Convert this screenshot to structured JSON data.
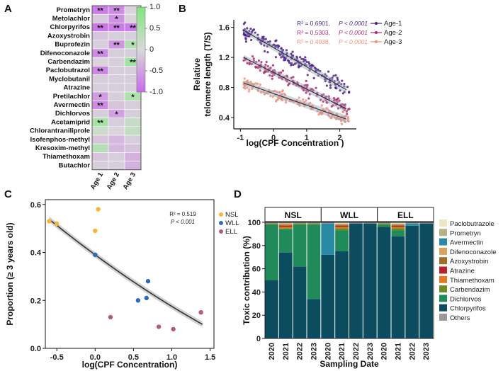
{
  "chart_data": [
    {
      "panel": "A",
      "type": "heatmap",
      "rows": [
        "Prometryn",
        "Metolachlor",
        "Chlorpyrifos",
        "Azoxystrobin",
        "Buprofezin",
        "Difenoconazole",
        "Carbendazim",
        "Paclobutrazol",
        "Myclobutanil",
        "Atrazine",
        "Pretilachlor",
        "Avermectin",
        "Dichlorvos",
        "Acetamiprid",
        "Chlorantraniliprole",
        "Isofenphos-methyl",
        "Kresoxim-methyl",
        "Thiamethoxam",
        "Butachlor"
      ],
      "columns": [
        "Age 1",
        "Age 2",
        "Age 3"
      ],
      "values": [
        [
          -0.85,
          -0.7,
          -0.05
        ],
        [
          -0.15,
          -0.65,
          -0.05
        ],
        [
          -0.9,
          -0.85,
          -0.85
        ],
        [
          -0.2,
          -0.1,
          -0.1
        ],
        [
          -0.1,
          -0.6,
          0.4
        ],
        [
          -0.7,
          -0.1,
          -0.1
        ],
        [
          -0.05,
          -0.1,
          0.6
        ],
        [
          -0.75,
          -0.1,
          -0.1
        ],
        [
          -0.1,
          -0.1,
          -0.1
        ],
        [
          -0.1,
          -0.1,
          -0.1
        ],
        [
          -0.55,
          -0.1,
          0.45
        ],
        [
          -0.7,
          -0.2,
          -0.1
        ],
        [
          -0.1,
          -0.5,
          -0.1
        ],
        [
          0.55,
          -0.1,
          0.2
        ],
        [
          0.15,
          -0.05,
          0.25
        ],
        [
          -0.2,
          -0.3,
          -0.1
        ],
        [
          0.4,
          -0.3,
          -0.2
        ],
        [
          -0.2,
          -0.1,
          -0.35
        ],
        [
          -0.1,
          -0.1,
          -0.35
        ]
      ],
      "stars": [
        [
          "**",
          "**",
          ""
        ],
        [
          "",
          "*",
          ""
        ],
        [
          "**",
          "**",
          "**"
        ],
        [
          "",
          "",
          ""
        ],
        [
          "",
          "**",
          "*"
        ],
        [
          "**",
          "",
          ""
        ],
        [
          "",
          "",
          "**"
        ],
        [
          "**",
          "",
          ""
        ],
        [
          "",
          "",
          ""
        ],
        [
          "",
          "",
          ""
        ],
        [
          "*",
          "",
          "*"
        ],
        [
          "**",
          "",
          ""
        ],
        [
          "",
          "*",
          ""
        ],
        [
          "**",
          "",
          ""
        ],
        [
          "",
          "",
          ""
        ],
        [
          "",
          "",
          ""
        ],
        [
          "",
          "",
          ""
        ],
        [
          "",
          "",
          ""
        ],
        [
          "",
          "",
          ""
        ]
      ],
      "colorbar_ticks": [
        "1.0",
        "0.5",
        "0",
        "-0.5",
        "-1.0"
      ],
      "colorbar_range": [
        -1.0,
        1.0
      ],
      "colors": {
        "high": "#7de87d",
        "mid": "#d9d9d9",
        "low": "#c86be8"
      }
    },
    {
      "panel": "B",
      "type": "scatter",
      "xlabel": "log(CPF Concentration )",
      "ylabel_line1": "Relative",
      "ylabel_line2": "telomere length (T/S)",
      "xlim": [
        -1.2,
        2.5
      ],
      "ylim": [
        0.25,
        1.7
      ],
      "xticks": [
        -1,
        0,
        1,
        2
      ],
      "yticks": [
        0.4,
        0.8,
        1.2,
        1.6
      ],
      "series": [
        {
          "name": "Age-1",
          "r2": "R² = 0.6901,",
          "p": "P < 0.0001",
          "color": "#4b1f8a",
          "intercept": 1.33,
          "slope": -0.255,
          "x_range": [
            -0.9,
            2.3
          ],
          "spread": 0.12,
          "n": 190
        },
        {
          "name": "Age-2",
          "r2": "R² = 0.5303,",
          "p": "P < 0.0001",
          "color": "#b5286e",
          "intercept": 1.0,
          "slope": -0.22,
          "x_range": [
            -0.9,
            2.3
          ],
          "spread": 0.1,
          "n": 150
        },
        {
          "name": "Age-3",
          "r2": "R² = 0.4038,",
          "p": "P < 0.0001",
          "color": "#f0907a",
          "intercept": 0.72,
          "slope": -0.155,
          "x_range": [
            -0.9,
            2.3
          ],
          "spread": 0.09,
          "n": 170
        }
      ]
    },
    {
      "panel": "C",
      "type": "scatter",
      "xlabel": "log(CPF Concentration)",
      "ylabel": "Proportion (≥ 3 years old)",
      "xlim": [
        -0.65,
        1.55
      ],
      "ylim": [
        0.0,
        0.62
      ],
      "xticks": [
        "-0.5",
        "0.0",
        "0.5",
        "1.0",
        "1.5"
      ],
      "yticks": [
        "0.0",
        "0.2",
        "0.4",
        "0.6"
      ],
      "stat_r2": "R² = 0.519",
      "stat_p": "P < 0.001",
      "fit": {
        "a": 0.39,
        "b": -0.235,
        "c": 0.0
      },
      "series": [
        {
          "name": "NSL",
          "color": "#f5b73b",
          "points": [
            [
              -0.6,
              0.53
            ],
            [
              -0.5,
              0.52
            ],
            [
              0.04,
              0.58
            ],
            [
              0.0,
              0.49
            ]
          ]
        },
        {
          "name": "WLL",
          "color": "#2d6cb5",
          "points": [
            [
              0.0,
              0.39
            ],
            [
              0.56,
              0.2
            ],
            [
              0.69,
              0.28
            ],
            [
              0.67,
              0.21
            ]
          ]
        },
        {
          "name": "ELL",
          "color": "#b35a78",
          "points": [
            [
              0.2,
              0.13
            ],
            [
              0.83,
              0.09
            ],
            [
              1.02,
              0.08
            ],
            [
              1.38,
              0.15
            ]
          ]
        }
      ]
    },
    {
      "panel": "D",
      "type": "bar",
      "xlabel": "Sampling Date",
      "ylabel": "Toxic contribution (%)",
      "groups": [
        "NSL",
        "WLL",
        "ELL"
      ],
      "categories": [
        "2020",
        "2021",
        "2022",
        "2023"
      ],
      "yticks": [
        "0",
        "20",
        "40",
        "60",
        "80",
        "100"
      ],
      "components": [
        {
          "name": "Paclobutrazole",
          "color": "#ece5c7"
        },
        {
          "name": "Prometryn",
          "color": "#b8b183"
        },
        {
          "name": "Avermectin",
          "color": "#2a8aa3"
        },
        {
          "name": "Difenoconazole",
          "color": "#d9a15e"
        },
        {
          "name": "Azoxystrobin",
          "color": "#9e6f2a"
        },
        {
          "name": "Atrazine",
          "color": "#b5232a"
        },
        {
          "name": "Thiamethoxam",
          "color": "#e47a1f"
        },
        {
          "name": "Carbendazim",
          "color": "#6c8c23"
        },
        {
          "name": "Dichlorvos",
          "color": "#218a5a"
        },
        {
          "name": "Chlorpyrifos",
          "color": "#0b4c5f"
        },
        {
          "name": "Others",
          "color": "#9a9a9a"
        }
      ],
      "stacks": [
        [
          {
            "Chlorpyrifos": 50,
            "Dichlorvos": 48,
            "Carbendazim": 1,
            "Others": 1
          },
          {
            "Chlorpyrifos": 74,
            "Dichlorvos": 20,
            "Carbendazim": 1,
            "Thiamethoxam": 1,
            "Atrazine": 1,
            "Azoxystrobin": 1,
            "Difenoconazole": 1,
            "Prometryn": 1
          },
          {
            "Chlorpyrifos": 62,
            "Dichlorvos": 36,
            "Carbendazim": 1,
            "Others": 1
          },
          {
            "Chlorpyrifos": 34,
            "Dichlorvos": 64,
            "Carbendazim": 1,
            "Others": 1
          }
        ],
        [
          {
            "Chlorpyrifos": 72,
            "Avermectin": 27,
            "Others": 1
          },
          {
            "Chlorpyrifos": 75,
            "Dichlorvos": 18,
            "Carbendazim": 2,
            "Thiamethoxam": 1,
            "Atrazine": 1,
            "Azoxystrobin": 1,
            "Prometryn": 1,
            "Paclobutrazole": 1
          },
          {
            "Chlorpyrifos": 99,
            "Others": 1
          },
          {
            "Chlorpyrifos": 99,
            "Others": 1
          }
        ],
        [
          {
            "Chlorpyrifos": 96,
            "Dichlorvos": 2,
            "Carbendazim": 1,
            "Others": 1
          },
          {
            "Chlorpyrifos": 88,
            "Dichlorvos": 5,
            "Carbendazim": 2,
            "Thiamethoxam": 1,
            "Atrazine": 1,
            "Azoxystrobin": 1,
            "Prometryn": 1,
            "Paclobutrazole": 1
          },
          {
            "Chlorpyrifos": 97,
            "Avermectin": 2,
            "Others": 1
          },
          {
            "Chlorpyrifos": 99,
            "Others": 1
          }
        ]
      ]
    }
  ],
  "panel_labels": {
    "a": "A",
    "b": "B",
    "c": "C",
    "d": "D"
  }
}
